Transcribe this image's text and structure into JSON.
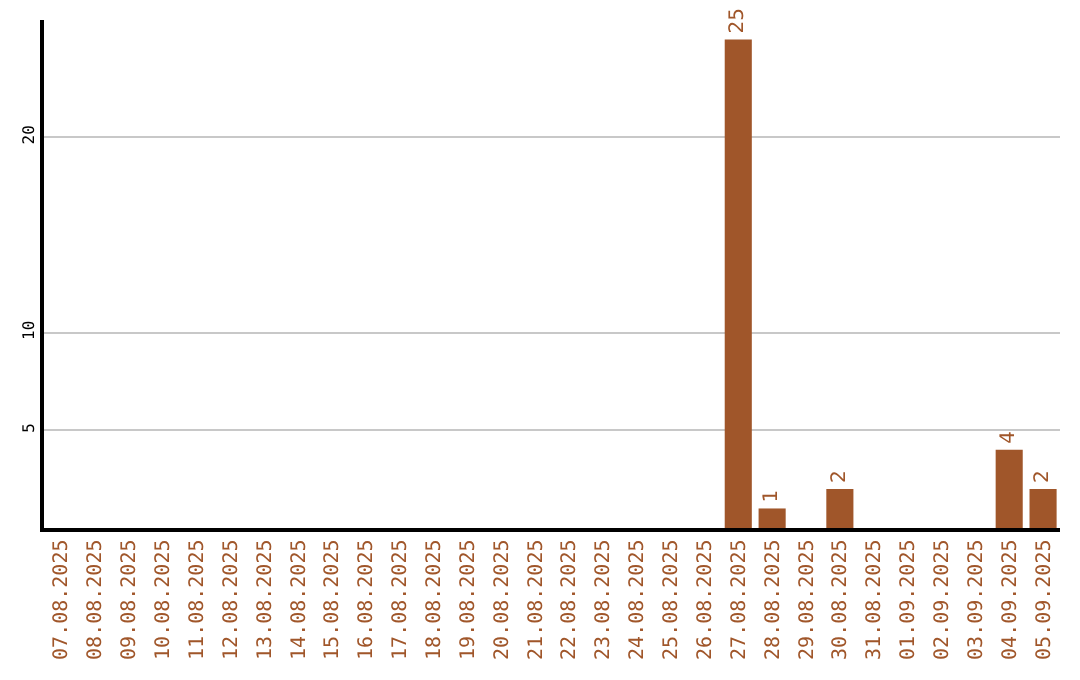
{
  "chart_data": {
    "type": "bar",
    "categories": [
      "07.08.2025",
      "08.08.2025",
      "09.08.2025",
      "10.08.2025",
      "11.08.2025",
      "12.08.2025",
      "13.08.2025",
      "14.08.2025",
      "15.08.2025",
      "16.08.2025",
      "17.08.2025",
      "18.08.2025",
      "19.08.2025",
      "20.08.2025",
      "21.08.2025",
      "22.08.2025",
      "23.08.2025",
      "24.08.2025",
      "25.08.2025",
      "26.08.2025",
      "27.08.2025",
      "28.08.2025",
      "29.08.2025",
      "30.08.2025",
      "31.08.2025",
      "01.09.2025",
      "02.09.2025",
      "03.09.2025",
      "04.09.2025",
      "05.09.2025"
    ],
    "values": [
      0,
      0,
      0,
      0,
      0,
      0,
      0,
      0,
      0,
      0,
      0,
      0,
      0,
      0,
      0,
      0,
      0,
      0,
      0,
      0,
      25,
      1,
      0,
      2,
      0,
      0,
      0,
      0,
      4,
      2
    ],
    "value_labels": [
      null,
      null,
      null,
      null,
      null,
      null,
      null,
      null,
      null,
      null,
      null,
      null,
      null,
      null,
      null,
      null,
      null,
      null,
      null,
      null,
      "25",
      "1",
      null,
      "2",
      null,
      null,
      null,
      null,
      "4",
      "2"
    ],
    "color": "#a0562a",
    "ylim": [
      0,
      26
    ],
    "yticks": [
      5,
      10,
      20
    ],
    "grid": "y",
    "legend": false
  }
}
